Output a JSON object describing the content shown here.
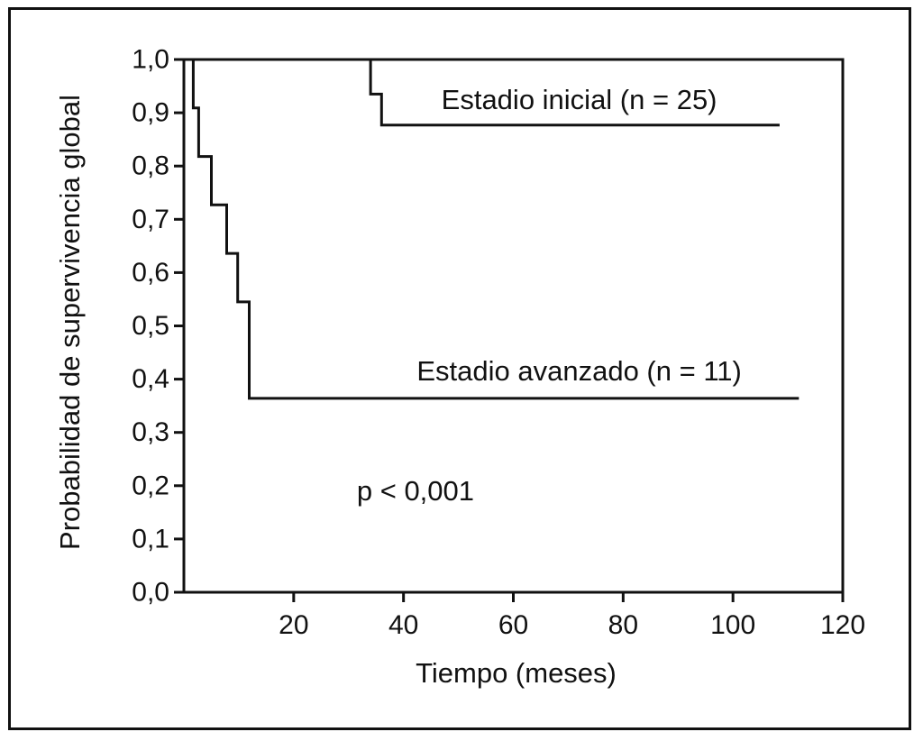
{
  "chart_data": {
    "type": "line",
    "title": "",
    "xlabel": "Tiempo (meses)",
    "ylabel": "Probabilidad de supervivencia global",
    "xlim": [
      0,
      120
    ],
    "ylim": [
      0,
      1
    ],
    "x_ticks": [
      20,
      40,
      60,
      80,
      100,
      120
    ],
    "x_tick_labels": [
      "20",
      "40",
      "60",
      "80",
      "100",
      "120"
    ],
    "y_ticks": [
      0,
      0.1,
      0.2,
      0.3,
      0.4,
      0.5,
      0.6,
      0.7,
      0.8,
      0.9,
      1.0
    ],
    "y_tick_labels": [
      "0,0",
      "0,1",
      "0,2",
      "0,3",
      "0,4",
      "0,5",
      "0,6",
      "0,7",
      "0,8",
      "0,9",
      "1,0"
    ],
    "grid": false,
    "legend": "none",
    "series": [
      {
        "name": "Estadio inicial (n = 25)",
        "step": true,
        "points": [
          [
            0,
            1.0
          ],
          [
            34,
            1.0
          ],
          [
            34,
            0.935
          ],
          [
            36,
            0.935
          ],
          [
            36,
            0.877
          ],
          [
            108.5,
            0.877
          ]
        ]
      },
      {
        "name": "Estadio avanzado (n = 11)",
        "step": true,
        "points": [
          [
            0,
            1.0
          ],
          [
            1.7,
            1.0
          ],
          [
            1.7,
            0.909
          ],
          [
            2.7,
            0.909
          ],
          [
            2.7,
            0.818
          ],
          [
            5,
            0.818
          ],
          [
            5,
            0.727
          ],
          [
            7.8,
            0.727
          ],
          [
            7.8,
            0.636
          ],
          [
            9.8,
            0.636
          ],
          [
            9.8,
            0.545
          ],
          [
            11.9,
            0.545
          ],
          [
            11.9,
            0.364
          ],
          [
            112,
            0.364
          ]
        ]
      }
    ],
    "annotations": [
      {
        "text": "Estadio inicial (n = 25)",
        "x": 72,
        "y": 0.925
      },
      {
        "text": "Estadio avanzado (n = 11)",
        "x": 72,
        "y": 0.415
      },
      {
        "text": "p < 0,001",
        "x": 31.5,
        "y": 0.19
      }
    ],
    "line_color": "#111111"
  }
}
